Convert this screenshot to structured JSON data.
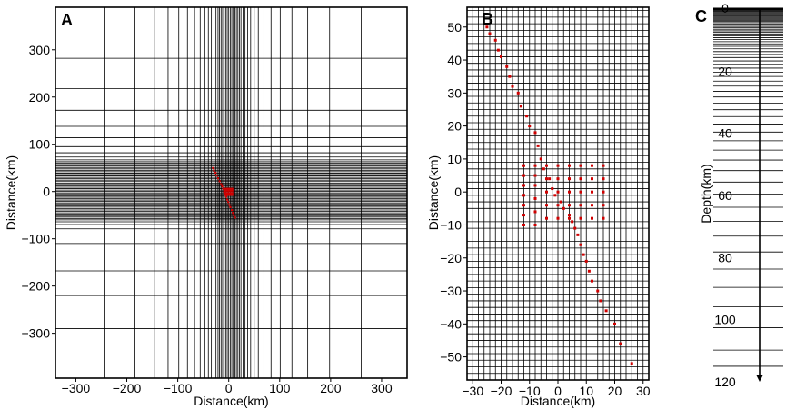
{
  "panels": [
    {
      "letter": "A",
      "xlabel": "Distance(km)",
      "ylabel": "Distance(km)"
    },
    {
      "letter": "B",
      "xlabel": "Distance(km)",
      "ylabel": "Distance(km)"
    },
    {
      "letter": "C",
      "ylabel": "Depth(km)"
    }
  ],
  "colors": {
    "stations": "#d00000",
    "grid": "#000000"
  },
  "chart_data": [
    {
      "type": "scatter",
      "panel": "A",
      "xlabel": "Distance(km)",
      "ylabel": "Distance(km)",
      "xlim": [
        -340,
        350
      ],
      "ylim": [
        -395,
        390
      ],
      "xticks": [
        -300,
        -200,
        -100,
        0,
        100,
        200,
        300
      ],
      "yticks": [
        300,
        200,
        100,
        0,
        -100,
        -200,
        -300
      ],
      "grid_x": [
        -340,
        -243,
        -184,
        -146,
        -119,
        -98,
        -81,
        -67,
        -56,
        -47,
        -40,
        -34,
        -29,
        -25,
        -21,
        -18,
        -15,
        -12,
        -9,
        -6,
        -3,
        0,
        3,
        6,
        9,
        12,
        15,
        18,
        21,
        24,
        28,
        32,
        37,
        43,
        50,
        58,
        69,
        83,
        101,
        124,
        155,
        198,
        260,
        350
      ],
      "grid_y": [
        -395,
        -290,
        -220,
        -168,
        -134,
        -110,
        -92,
        -79,
        -70,
        -64,
        -60,
        -57,
        -54,
        -51,
        -48,
        -45,
        -42,
        -39,
        -36,
        -33,
        -30,
        -27,
        -24,
        -21,
        -18,
        -15,
        -12,
        -9,
        -6,
        -3,
        0,
        3,
        6,
        9,
        12,
        15,
        18,
        21,
        24,
        27,
        30,
        33,
        36,
        39,
        42,
        45,
        48,
        51,
        54,
        57,
        60,
        63,
        67,
        73,
        82,
        95,
        114,
        138,
        172,
        218,
        282,
        390
      ],
      "stations": [
        [
          -31,
          50
        ],
        [
          -29,
          45
        ],
        [
          -26,
          40
        ],
        [
          -24,
          34
        ],
        [
          -21,
          28
        ],
        [
          -18,
          22
        ],
        [
          -15,
          16
        ],
        [
          -13,
          11
        ],
        [
          -11,
          6
        ],
        [
          -9,
          0
        ],
        [
          -7,
          -6
        ],
        [
          -5,
          -11
        ],
        [
          -3,
          -17
        ],
        [
          -1,
          -22
        ],
        [
          1,
          -28
        ],
        [
          3,
          -33
        ],
        [
          6,
          -39
        ],
        [
          8,
          -45
        ],
        [
          10,
          -50
        ],
        [
          12,
          -55
        ],
        [
          -8,
          2
        ],
        [
          -5,
          2
        ],
        [
          -2,
          2
        ],
        [
          1,
          2
        ],
        [
          4,
          2
        ],
        [
          7,
          2
        ],
        [
          -8,
          -3
        ],
        [
          -5,
          -3
        ],
        [
          -2,
          -3
        ],
        [
          1,
          -3
        ],
        [
          4,
          -3
        ],
        [
          7,
          -3
        ],
        [
          -8,
          6
        ],
        [
          -5,
          6
        ],
        [
          -2,
          6
        ],
        [
          1,
          6
        ],
        [
          4,
          6
        ],
        [
          7,
          6
        ],
        [
          -8,
          -7
        ],
        [
          -5,
          -7
        ],
        [
          -2,
          -7
        ],
        [
          1,
          -7
        ],
        [
          4,
          -7
        ],
        [
          7,
          -7
        ]
      ]
    },
    {
      "type": "scatter",
      "panel": "B",
      "xlabel": "Distance(km)",
      "ylabel": "Distance(km)",
      "xlim": [
        -32,
        32
      ],
      "ylim": [
        -57,
        56
      ],
      "xticks": [
        -30,
        -20,
        -10,
        0,
        10,
        20,
        30
      ],
      "yticks": [
        50,
        40,
        30,
        20,
        10,
        0,
        -10,
        -20,
        -30,
        -40,
        -50
      ],
      "grid_spacing": 2,
      "stations": [
        [
          -25,
          50
        ],
        [
          -24,
          48
        ],
        [
          -22,
          46
        ],
        [
          -21,
          43
        ],
        [
          -20,
          41
        ],
        [
          -18,
          38
        ],
        [
          -17,
          35
        ],
        [
          -16,
          32
        ],
        [
          -14,
          30
        ],
        [
          -13,
          26
        ],
        [
          -11,
          23
        ],
        [
          -10,
          20
        ],
        [
          -8,
          18
        ],
        [
          -7,
          14
        ],
        [
          -6,
          10
        ],
        [
          -5,
          7
        ],
        [
          -3,
          4
        ],
        [
          -2,
          1
        ],
        [
          -1,
          -1
        ],
        [
          1,
          -3
        ],
        [
          2,
          -5
        ],
        [
          4,
          -7
        ],
        [
          5,
          -9
        ],
        [
          6,
          -11
        ],
        [
          7,
          -13
        ],
        [
          8,
          -16
        ],
        [
          9,
          -19
        ],
        [
          10,
          -21
        ],
        [
          11,
          -24
        ],
        [
          12,
          -27
        ],
        [
          14,
          -30
        ],
        [
          15,
          -33
        ],
        [
          17,
          -36
        ],
        [
          20,
          -40
        ],
        [
          22,
          -46
        ],
        [
          26,
          -52
        ],
        [
          -12,
          8
        ],
        [
          -12,
          5
        ],
        [
          -12,
          2
        ],
        [
          -12,
          -1
        ],
        [
          -12,
          -4
        ],
        [
          -12,
          -7
        ],
        [
          -12,
          -10
        ],
        [
          -8,
          8
        ],
        [
          -8,
          5
        ],
        [
          -8,
          2
        ],
        [
          -8,
          -2
        ],
        [
          -8,
          -6
        ],
        [
          -8,
          -10
        ],
        [
          -4,
          8
        ],
        [
          -4,
          4
        ],
        [
          -4,
          0
        ],
        [
          -4,
          -4
        ],
        [
          -4,
          -8
        ],
        [
          0,
          8
        ],
        [
          0,
          4
        ],
        [
          0,
          0
        ],
        [
          0,
          -4
        ],
        [
          0,
          -8
        ],
        [
          4,
          8
        ],
        [
          4,
          4
        ],
        [
          4,
          0
        ],
        [
          4,
          -4
        ],
        [
          4,
          -8
        ],
        [
          8,
          8
        ],
        [
          8,
          4
        ],
        [
          8,
          0
        ],
        [
          8,
          -4
        ],
        [
          8,
          -8
        ],
        [
          12,
          8
        ],
        [
          12,
          4
        ],
        [
          12,
          0
        ],
        [
          12,
          -4
        ],
        [
          12,
          -8
        ],
        [
          16,
          8
        ],
        [
          16,
          4
        ],
        [
          16,
          0
        ],
        [
          16,
          -4
        ],
        [
          16,
          -8
        ]
      ]
    },
    {
      "type": "table",
      "panel": "C",
      "ylabel": "Depth(km)",
      "ylim": [
        0,
        120
      ],
      "yticks": [
        0,
        20,
        40,
        60,
        80,
        100,
        120
      ],
      "layer_depths": [
        0,
        0.3,
        0.6,
        0.9,
        1.2,
        1.5,
        1.8,
        2.1,
        2.4,
        2.7,
        3.0,
        3.3,
        3.6,
        4.0,
        4.4,
        4.8,
        5.2,
        5.6,
        6.0,
        6.5,
        7.0,
        7.5,
        8.0,
        8.6,
        9.2,
        9.8,
        10.5,
        11.2,
        12.0,
        12.8,
        13.7,
        14.6,
        15.6,
        16.7,
        17.8,
        19.0,
        20.3,
        21.7,
        23.2,
        24.8,
        26.5,
        28.3,
        30.3,
        32.4,
        34.6,
        37.0,
        39.6,
        42.4,
        45.4,
        48.6,
        52.0,
        55.7,
        59.6,
        63.8,
        68.3,
        73.1,
        78.2,
        83.7,
        89.6,
        95.9,
        102.6,
        109.8,
        115.0
      ]
    }
  ]
}
